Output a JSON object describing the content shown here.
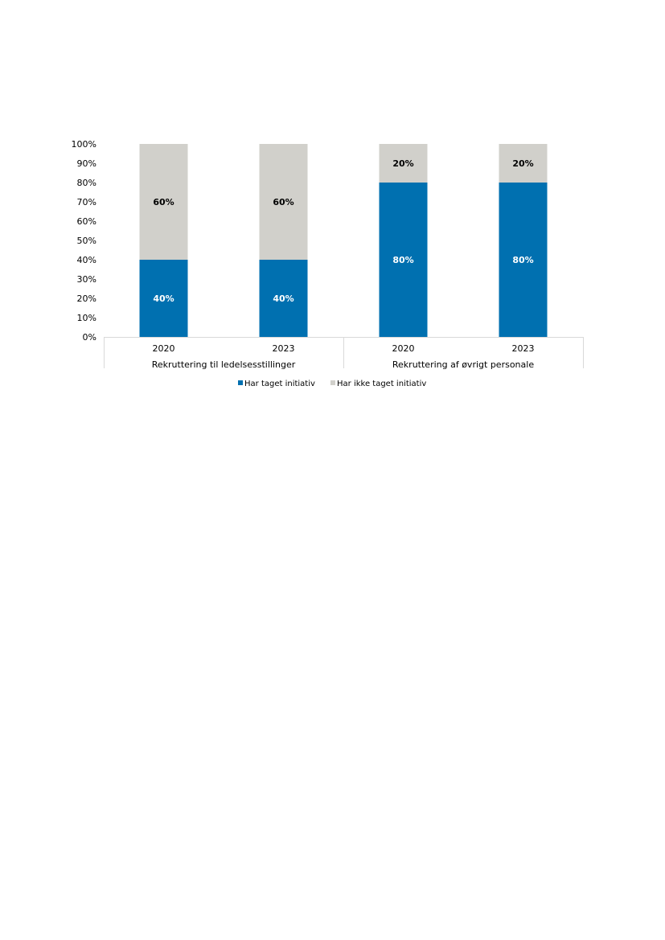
{
  "chart_data": {
    "type": "bar",
    "stacked": true,
    "stack_mode": "percent",
    "groups": [
      {
        "label": "Rekruttering til ledelsesstillinger",
        "categories": [
          "2020",
          "2023"
        ]
      },
      {
        "label": "Rekruttering af øvrigt personale",
        "categories": [
          "2020",
          "2023"
        ]
      }
    ],
    "series": [
      {
        "name": "Har taget initiativ",
        "color": "#0070b0",
        "label_color": "#ffffff",
        "values": [
          40,
          40,
          80,
          80
        ],
        "labels": [
          "40%",
          "40%",
          "80%",
          "80%"
        ]
      },
      {
        "name": "Har ikke taget initiativ",
        "color": "#d1d0cb",
        "label_color": "#000000",
        "values": [
          60,
          60,
          20,
          20
        ],
        "labels": [
          "60%",
          "60%",
          "20%",
          "20%"
        ]
      }
    ],
    "ylim": [
      0,
      100
    ],
    "yticks": [
      "0%",
      "10%",
      "20%",
      "30%",
      "40%",
      "50%",
      "60%",
      "70%",
      "80%",
      "90%",
      "100%"
    ],
    "grid": false,
    "legend_position": "bottom"
  }
}
